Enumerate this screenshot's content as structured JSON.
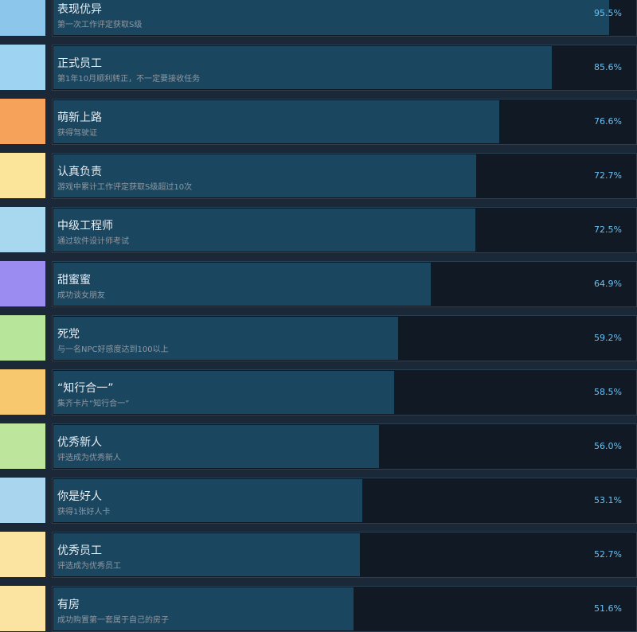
{
  "achievements": [
    {
      "title": "表现优异",
      "description": "第一次工作评定获取S级",
      "percent": 95.5,
      "percent_label": "95.5%"
    },
    {
      "title": "正式员工",
      "description": "第1年10月顺利转正，不一定要接收任务",
      "percent": 85.6,
      "percent_label": "85.6%"
    },
    {
      "title": "萌新上路",
      "description": "获得驾驶证",
      "percent": 76.6,
      "percent_label": "76.6%"
    },
    {
      "title": "认真负责",
      "description": "游戏中累计工作评定获取S级超过10次",
      "percent": 72.7,
      "percent_label": "72.7%"
    },
    {
      "title": "中级工程师",
      "description": "通过软件设计师考试",
      "percent": 72.5,
      "percent_label": "72.5%"
    },
    {
      "title": "甜蜜蜜",
      "description": "成功谈女朋友",
      "percent": 64.9,
      "percent_label": "64.9%"
    },
    {
      "title": "死党",
      "description": "与一名NPC好感度达到100以上",
      "percent": 59.2,
      "percent_label": "59.2%"
    },
    {
      "title": "“知行合一”",
      "description": "集齐卡片“知行合一”",
      "percent": 58.5,
      "percent_label": "58.5%"
    },
    {
      "title": "优秀新人",
      "description": "评选成为优秀新人",
      "percent": 56.0,
      "percent_label": "56.0%"
    },
    {
      "title": "你是好人",
      "description": "获得1张好人卡",
      "percent": 53.1,
      "percent_label": "53.1%"
    },
    {
      "title": "优秀员工",
      "description": "评选成为优秀员工",
      "percent": 52.7,
      "percent_label": "52.7%"
    },
    {
      "title": "有房",
      "description": "成功购置第一套属于自己的房子",
      "percent": 51.6,
      "percent_label": "51.6%"
    }
  ]
}
